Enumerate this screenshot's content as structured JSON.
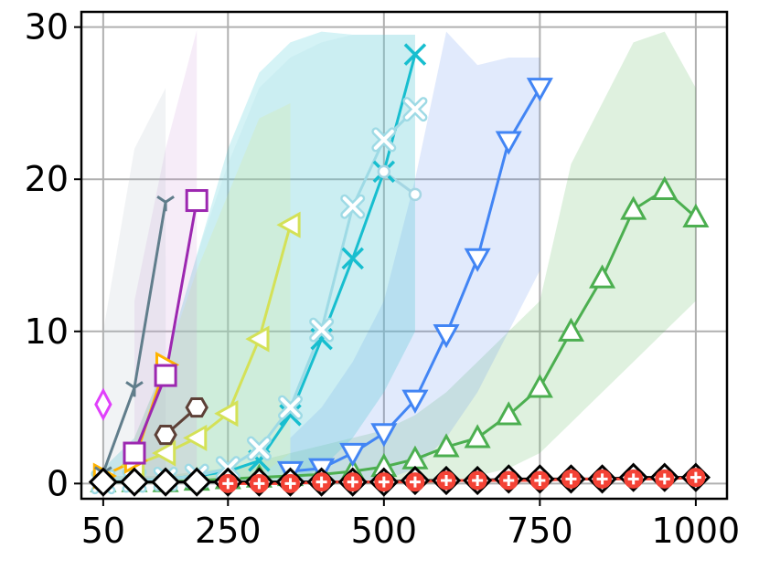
{
  "chart_data": {
    "type": "line",
    "title": "",
    "xlabel": "",
    "ylabel": "",
    "xlim": [
      15,
      1050
    ],
    "ylim": [
      -1,
      31
    ],
    "grid": true,
    "x_ticks": [
      50,
      250,
      500,
      750,
      1000
    ],
    "x_tick_labels": [
      "50",
      "250",
      "500",
      "750",
      "1000"
    ],
    "y_ticks": [
      0,
      10,
      20,
      30
    ],
    "y_tick_labels": [
      "0",
      "10",
      "20",
      "30"
    ],
    "series": [
      {
        "color": "#4caf50",
        "marker": "triangle-up",
        "fill": "#4caf50",
        "x": [
          50,
          100,
          150,
          200,
          250,
          300,
          350,
          400,
          450,
          500,
          550,
          600,
          650,
          700,
          750,
          800,
          850,
          900,
          950,
          1000
        ],
        "y": [
          0.1,
          0.1,
          0.1,
          0.2,
          0.3,
          0.4,
          0.5,
          0.6,
          0.8,
          1.1,
          1.6,
          2.4,
          3.0,
          4.5,
          6.3,
          10.0,
          13.5,
          18.0,
          19.3,
          17.5
        ],
        "band_low": [
          0,
          0,
          0,
          0,
          0,
          0,
          0,
          0,
          0,
          0,
          0,
          0,
          0.5,
          1,
          2,
          4,
          6,
          8,
          10,
          12
        ],
        "band_high": [
          0.5,
          0.5,
          0.5,
          0.8,
          1,
          1.5,
          2,
          2.5,
          3,
          3.5,
          4.5,
          6,
          8,
          10,
          12,
          21,
          25,
          29,
          29.7,
          26
        ]
      },
      {
        "color": "#4285f4",
        "marker": "triangle-down",
        "fill": "#5b8def",
        "x": [
          350,
          400,
          450,
          500,
          550,
          600,
          650,
          700,
          750
        ],
        "y": [
          0.8,
          1.0,
          2.0,
          3.3,
          5.5,
          9.8,
          14.8,
          22.5,
          26.0
        ],
        "band_low": [
          0,
          0,
          0,
          0.2,
          1,
          3,
          6,
          10,
          14
        ],
        "band_high": [
          3,
          5,
          8,
          12,
          20,
          29.7,
          27.5,
          28,
          28
        ]
      },
      {
        "color": "#17becf",
        "marker": "x",
        "fill": "#17becf",
        "x": [
          50,
          100,
          150,
          200,
          250,
          300,
          350,
          400,
          450,
          500,
          550
        ],
        "y": [
          0.1,
          0.2,
          0.3,
          0.5,
          0.8,
          1.5,
          4.5,
          9.5,
          14.8,
          20.5,
          28.2
        ],
        "band_low": [
          0,
          0,
          0,
          0,
          0,
          0,
          0,
          1,
          3,
          6,
          10
        ],
        "band_high": [
          1,
          3,
          8,
          15,
          22,
          27,
          29,
          29.7,
          29.5,
          29.5,
          29.5
        ]
      },
      {
        "color": "#9edae5",
        "marker": "x-bold",
        "fill": "#9edae5",
        "x": [
          50,
          100,
          150,
          200,
          250,
          300,
          350,
          400,
          450,
          500,
          550
        ],
        "y": [
          0.1,
          0.2,
          0.3,
          0.5,
          1.0,
          2.3,
          5.0,
          10.1,
          18.2,
          22.6,
          24.6
        ],
        "band_low": [
          0,
          0,
          0,
          0,
          0,
          0,
          0,
          1,
          3,
          6,
          10
        ],
        "band_high": [
          1,
          3,
          8,
          15,
          21,
          26,
          28,
          29,
          29.5,
          29.5,
          29.5
        ]
      },
      {
        "color": "#d4e157",
        "marker": "triangle-left",
        "fill": "#dce775",
        "x": [
          100,
          150,
          200,
          250,
          300,
          350
        ],
        "y": [
          1.2,
          2.0,
          3.0,
          4.6,
          9.5,
          17.0
        ],
        "band_low": [
          0,
          0,
          0,
          0,
          0.5,
          2
        ],
        "band_high": [
          3,
          8,
          14,
          19,
          24,
          25
        ]
      },
      {
        "color": "#ffb300",
        "marker": "triangle-right",
        "fill": "#ffe082",
        "x": [
          50,
          100,
          150
        ],
        "y": [
          0.5,
          1.5,
          7.8
        ],
        "band_low": [],
        "band_high": []
      },
      {
        "color": "#9c27b0",
        "marker": "square",
        "fill": "#ce93d8",
        "x": [
          100,
          150,
          200
        ],
        "y": [
          2.0,
          7.1,
          18.6
        ],
        "band_low": [
          0,
          0,
          0
        ],
        "band_high": [
          12,
          22,
          29.8
        ]
      },
      {
        "color": "#607d8b",
        "marker": "tri-down",
        "fill": "#b0bec5",
        "x": [
          50,
          100,
          150
        ],
        "y": [
          0.7,
          6.3,
          18.5
        ],
        "band_low": [
          0,
          0,
          0
        ],
        "band_high": [
          10,
          22,
          26
        ]
      },
      {
        "color": "#5d4037",
        "marker": "hexagon",
        "fill": "#5d4037",
        "x": [
          150,
          200
        ],
        "y": [
          3.2,
          5.0
        ],
        "band_low": [],
        "band_high": []
      },
      {
        "color": "#e040fb",
        "marker": "thin-diamond",
        "fill": "#e040fb",
        "x": [
          50
        ],
        "y": [
          5.2
        ],
        "band_low": [],
        "band_high": []
      },
      {
        "color": "#a5d6e3",
        "marker": "circle-small",
        "fill": "#a5d6e3",
        "x": [
          500,
          550
        ],
        "y": [
          20.5,
          19.0
        ],
        "band_low": [],
        "band_high": []
      },
      {
        "color": "#000000",
        "marker": "diamond",
        "fill": "#000000",
        "x": [
          50,
          100,
          150,
          200,
          250,
          300,
          350,
          400,
          450,
          500,
          550,
          600,
          650,
          700,
          750,
          800,
          850,
          900,
          950,
          1000
        ],
        "y": [
          0.1,
          0.1,
          0.1,
          0.1,
          0.1,
          0.1,
          0.1,
          0.1,
          0.1,
          0.1,
          0.2,
          0.2,
          0.2,
          0.3,
          0.3,
          0.3,
          0.3,
          0.4,
          0.4,
          0.4
        ],
        "band_low": [],
        "band_high": []
      },
      {
        "color": "#f44336",
        "marker": "plus-circle",
        "fill": "#f44336",
        "x": [
          250,
          300,
          350,
          400,
          450,
          500,
          550,
          600,
          650,
          700,
          750,
          800,
          850,
          900,
          950,
          1000
        ],
        "y": [
          0.0,
          0.0,
          0.0,
          0.1,
          0.1,
          0.1,
          0.1,
          0.2,
          0.2,
          0.2,
          0.2,
          0.3,
          0.3,
          0.3,
          0.3,
          0.4
        ],
        "band_low": [],
        "band_high": []
      }
    ]
  }
}
